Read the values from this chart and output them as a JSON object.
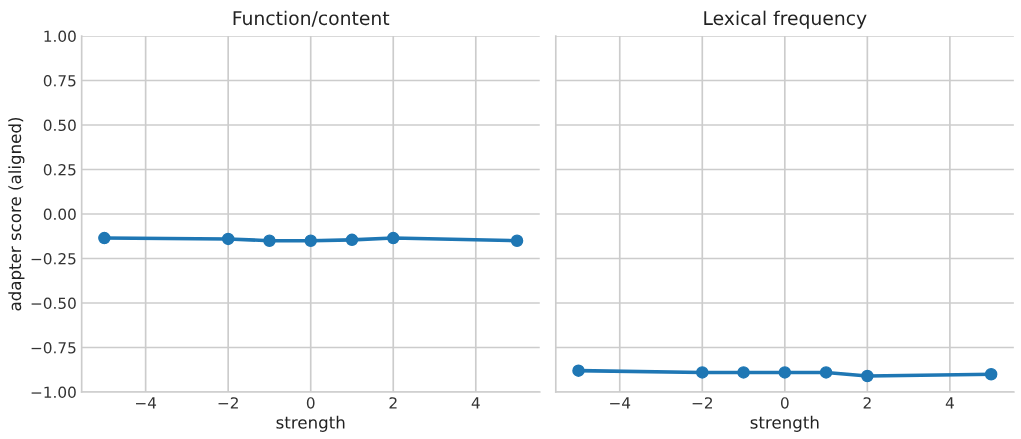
{
  "chart_data": [
    {
      "type": "line",
      "title": "Function/content",
      "xlabel": "strength",
      "ylabel": "adapter score (aligned)",
      "x": [
        -5,
        -2,
        -1,
        0,
        1,
        2,
        5
      ],
      "series": [
        {
          "color": "#1f77b4",
          "values": [
            -0.135,
            -0.14,
            -0.15,
            -0.15,
            -0.145,
            -0.135,
            -0.15
          ]
        }
      ],
      "xlim": [
        -5.55,
        5.55
      ],
      "ylim": [
        -1.0,
        1.0
      ],
      "xticks": [
        -4,
        -2,
        0,
        2,
        4
      ],
      "yticks": [
        {
          "value": -1.0,
          "label": "−1.00"
        },
        {
          "value": -0.75,
          "label": "−0.75"
        },
        {
          "value": -0.5,
          "label": "−0.50"
        },
        {
          "value": -0.25,
          "label": "−0.25"
        },
        {
          "value": 0,
          "label": "0.00"
        },
        {
          "value": 0.25,
          "label": "0.25"
        },
        {
          "value": 0.5,
          "label": "0.50"
        },
        {
          "value": 0.75,
          "label": "0.75"
        },
        {
          "value": 1.0,
          "label": "1.00"
        }
      ],
      "grid": true,
      "marker": "circle",
      "line_style": "solid"
    },
    {
      "type": "line",
      "title": "Lexical frequency",
      "xlabel": "strength",
      "x": [
        -5,
        -2,
        -1,
        0,
        1,
        2,
        5
      ],
      "series": [
        {
          "color": "#1f77b4",
          "values": [
            -0.88,
            -0.89,
            -0.89,
            -0.89,
            -0.89,
            -0.91,
            -0.9
          ]
        }
      ],
      "xlim": [
        -5.55,
        5.55
      ],
      "ylim": [
        -1.0,
        1.0
      ],
      "xticks": [
        -4,
        -2,
        0,
        2,
        4
      ],
      "yticks": [
        {
          "value": -1.0,
          "label": null
        },
        {
          "value": -0.75,
          "label": null
        },
        {
          "value": -0.5,
          "label": null
        },
        {
          "value": -0.25,
          "label": null
        },
        {
          "value": 0,
          "label": null
        },
        {
          "value": 0.25,
          "label": null
        },
        {
          "value": 0.5,
          "label": null
        },
        {
          "value": 0.75,
          "label": null
        },
        {
          "value": 1.0,
          "label": null
        }
      ],
      "tick_labels": "x",
      "grid": true,
      "marker": "circle",
      "line_style": "solid"
    }
  ]
}
